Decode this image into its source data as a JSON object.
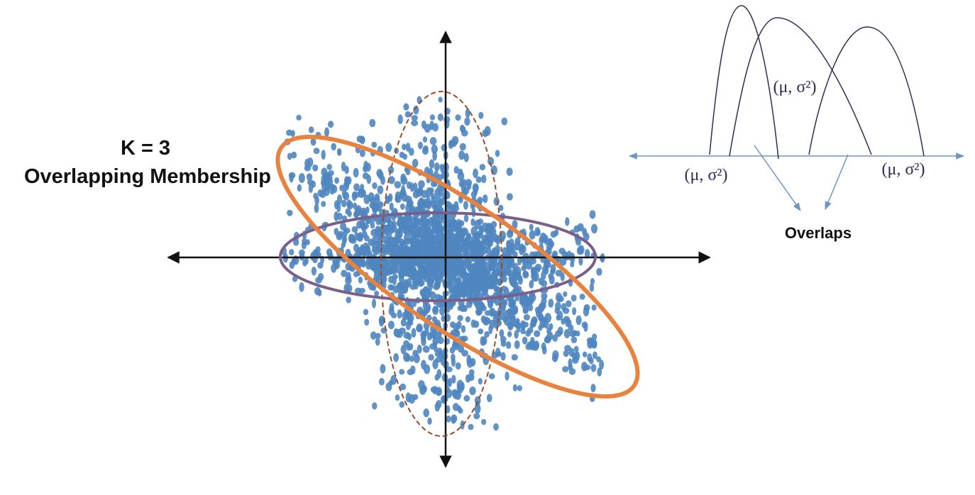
{
  "heading": {
    "k": "K = 3",
    "membership": "Overlapping Membership"
  },
  "distribution_labels": [
    "(μ, σ²)",
    "(μ, σ²)",
    "(μ, σ²)"
  ],
  "overlaps": "Overlaps"
}
